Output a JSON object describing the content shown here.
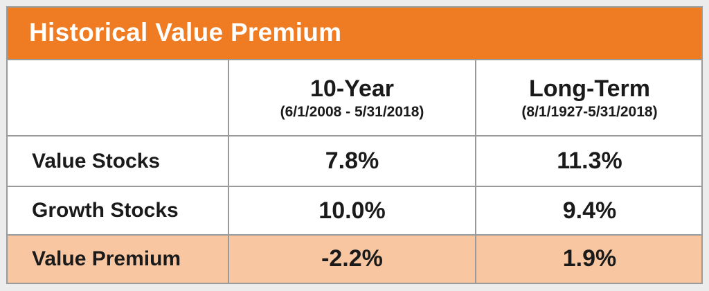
{
  "title": "Historical Value Premium",
  "colors": {
    "header_bar": "#ef7b23",
    "highlight_row": "#f8c7a2",
    "border": "#9a9a9a"
  },
  "columns": [
    {
      "heading": "10-Year",
      "period": "(6/1/2008 - 5/31/2018)"
    },
    {
      "heading": "Long-Term",
      "period": "(8/1/1927-5/31/2018)"
    }
  ],
  "rows": [
    {
      "label": "Value Stocks",
      "values": [
        "7.8%",
        "11.3%"
      ]
    },
    {
      "label": "Growth Stocks",
      "values": [
        "10.0%",
        "9.4%"
      ]
    },
    {
      "label": "Value Premium",
      "values": [
        "-2.2%",
        "1.9%"
      ]
    }
  ],
  "chart_data": {
    "type": "table",
    "title": "Historical Value Premium",
    "columns": [
      "",
      "10-Year (6/1/2008 - 5/31/2018)",
      "Long-Term (8/1/1927-5/31/2018)"
    ],
    "rows": [
      [
        "Value Stocks",
        7.8,
        11.3
      ],
      [
        "Growth Stocks",
        10.0,
        9.4
      ],
      [
        "Value Premium",
        -2.2,
        1.9
      ]
    ],
    "unit": "%"
  }
}
